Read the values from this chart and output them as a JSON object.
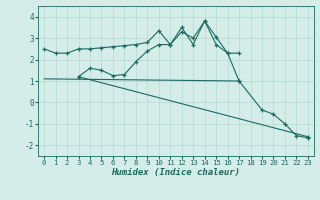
{
  "xlabel": "Humidex (Indice chaleur)",
  "x": [
    0,
    1,
    2,
    3,
    4,
    5,
    6,
    7,
    8,
    9,
    10,
    11,
    12,
    13,
    14,
    15,
    16,
    17,
    18,
    19,
    20,
    21,
    22,
    23
  ],
  "line1": [
    2.5,
    2.3,
    2.3,
    2.5,
    2.5,
    2.55,
    2.6,
    2.65,
    2.7,
    2.8,
    3.35,
    2.7,
    3.3,
    3.0,
    3.8,
    3.05,
    2.3,
    2.3,
    null,
    null,
    null,
    null,
    null,
    null
  ],
  "line2": [
    null,
    null,
    null,
    1.2,
    1.6,
    1.5,
    1.25,
    1.3,
    1.9,
    2.4,
    2.7,
    2.7,
    3.5,
    2.7,
    3.8,
    2.7,
    2.3,
    1.0,
    null,
    null,
    null,
    null,
    null,
    null
  ],
  "line3_x": [
    3,
    23
  ],
  "line3_y": [
    1.2,
    -1.6
  ],
  "line4_x": [
    0,
    17
  ],
  "line4_y": [
    1.1,
    1.0
  ],
  "line5_x": [
    17,
    19,
    20,
    21,
    22,
    23
  ],
  "line5_y": [
    1.0,
    -0.35,
    -0.55,
    -1.0,
    -1.55,
    -1.65
  ],
  "bg_color": "#d4ede8",
  "line_color": "#1a6b5e",
  "grid_color": "#b5d9d2",
  "ylim": [
    -2.5,
    4.5
  ],
  "xlim": [
    -0.5,
    23.5
  ],
  "yticks": [
    -2,
    -1,
    0,
    1,
    2,
    3,
    4
  ],
  "xticks": [
    0,
    1,
    2,
    3,
    4,
    5,
    6,
    7,
    8,
    9,
    10,
    11,
    12,
    13,
    14,
    15,
    16,
    17,
    18,
    19,
    20,
    21,
    22,
    23
  ]
}
